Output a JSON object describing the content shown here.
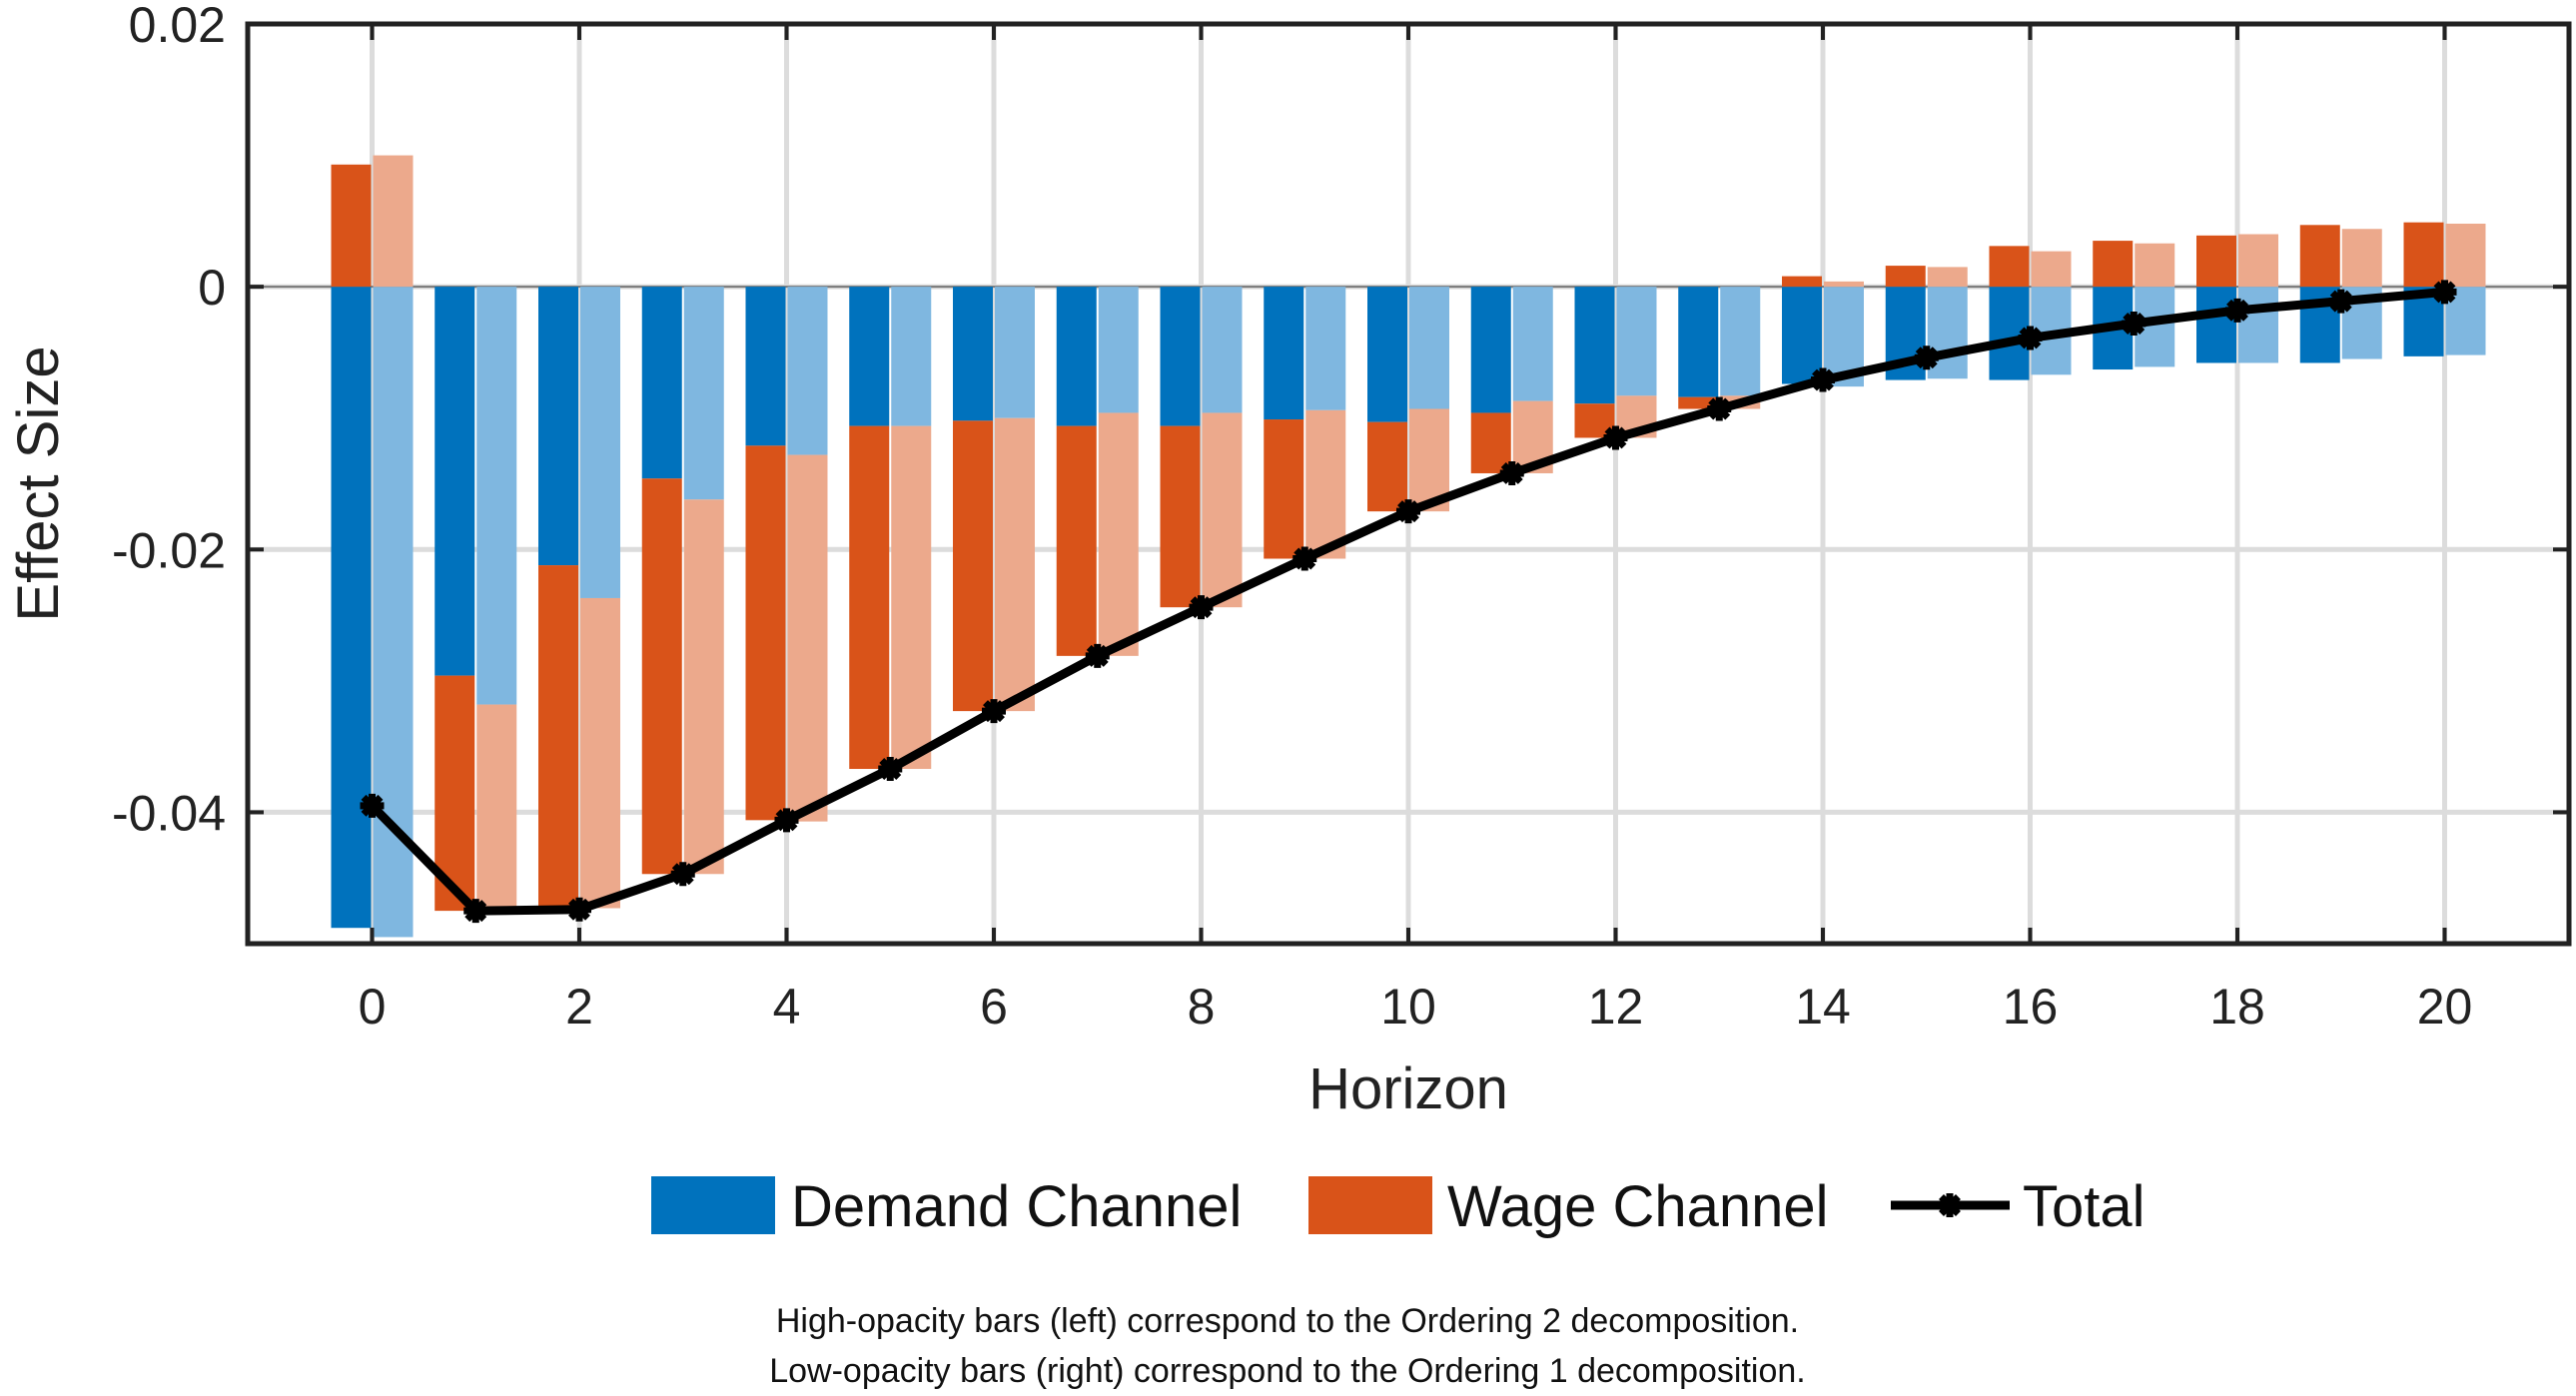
{
  "chart_data": {
    "type": "bar",
    "title": "",
    "xlabel": "Horizon",
    "ylabel": "Effect Size",
    "xlim": [
      -1.2,
      21.2
    ],
    "ylim": [
      -0.05,
      0.02
    ],
    "x_ticks": [
      0,
      2,
      4,
      6,
      8,
      10,
      12,
      14,
      16,
      18,
      20
    ],
    "y_ticks": [
      -0.04,
      -0.02,
      0,
      0.02
    ],
    "x_tick_labels": [
      "0",
      "2",
      "4",
      "6",
      "8",
      "10",
      "12",
      "14",
      "16",
      "18",
      "20"
    ],
    "y_tick_labels": [
      "-0.04",
      "-0.02",
      "0",
      "0.02"
    ],
    "grid": true,
    "stacked": true,
    "x": [
      0,
      1,
      2,
      3,
      4,
      5,
      6,
      7,
      8,
      9,
      10,
      11,
      12,
      13,
      14,
      15,
      16,
      17,
      18,
      19,
      20
    ],
    "series": [
      {
        "name": "Demand Channel",
        "group": "Ordering 2",
        "opacity": "high",
        "color": "#0072BD",
        "values": [
          -0.0488,
          -0.0296,
          -0.0212,
          -0.0146,
          -0.0121,
          -0.0106,
          -0.0102,
          -0.0106,
          -0.0106,
          -0.0101,
          -0.0103,
          -0.0096,
          -0.0089,
          -0.0084,
          -0.0074,
          -0.0071,
          -0.0071,
          -0.0063,
          -0.0058,
          -0.0058,
          -0.0053
        ]
      },
      {
        "name": "Wage Channel",
        "group": "Ordering 2",
        "opacity": "high",
        "color": "#D95319",
        "values": [
          0.0093,
          -0.0179,
          -0.0262,
          -0.0301,
          -0.0285,
          -0.0261,
          -0.0221,
          -0.0175,
          -0.0138,
          -0.0106,
          -0.0068,
          -0.0046,
          -0.0026,
          -0.0009,
          0.0008,
          0.0016,
          0.0031,
          0.0035,
          0.0039,
          0.0047,
          0.0049
        ]
      },
      {
        "name": "Demand Channel",
        "group": "Ordering 1",
        "opacity": "low",
        "color": "#7FB7E0",
        "values": [
          -0.0495,
          -0.0318,
          -0.0237,
          -0.0162,
          -0.0128,
          -0.0106,
          -0.01,
          -0.0096,
          -0.0096,
          -0.0094,
          -0.0093,
          -0.0087,
          -0.0083,
          -0.0083,
          -0.0076,
          -0.007,
          -0.0067,
          -0.0061,
          -0.0058,
          -0.0055,
          -0.0052
        ]
      },
      {
        "name": "Wage Channel",
        "group": "Ordering 1",
        "opacity": "low",
        "color": "#ECA98C",
        "values": [
          0.01,
          -0.0157,
          -0.0236,
          -0.0285,
          -0.0279,
          -0.0261,
          -0.0223,
          -0.0185,
          -0.0148,
          -0.0113,
          -0.0078,
          -0.0055,
          -0.0032,
          -0.001,
          0.0004,
          0.0015,
          0.0027,
          0.0033,
          0.004,
          0.0044,
          0.0048
        ]
      },
      {
        "name": "Total",
        "type": "line",
        "color": "#000000",
        "marker": "star",
        "values": [
          -0.0395,
          -0.0475,
          -0.0474,
          -0.0447,
          -0.0406,
          -0.0367,
          -0.0323,
          -0.0281,
          -0.0244,
          -0.0207,
          -0.0171,
          -0.0142,
          -0.0115,
          -0.0093,
          -0.0071,
          -0.0054,
          -0.0039,
          -0.0028,
          -0.0018,
          -0.0011,
          -0.0004
        ]
      }
    ],
    "legend": {
      "placement": "bottom",
      "entries": [
        {
          "label": "Demand Channel",
          "color": "#0072BD",
          "kind": "patch"
        },
        {
          "label": "Wage Channel",
          "color": "#D95319",
          "kind": "patch"
        },
        {
          "label": "Total",
          "color": "#000000",
          "kind": "line-marker"
        }
      ]
    },
    "notes": [
      "High-opacity bars (left) correspond to the Ordering 2 decomposition.",
      "Low-opacity bars (right) correspond to the Ordering 1 decomposition."
    ]
  }
}
